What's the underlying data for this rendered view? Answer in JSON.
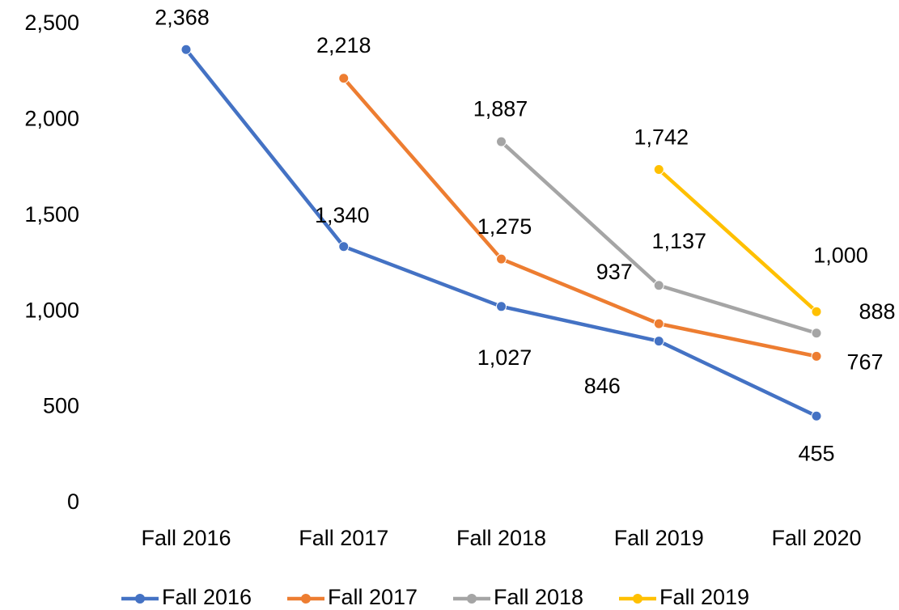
{
  "chart_data": {
    "type": "line",
    "categories": [
      "Fall 2016",
      "Fall 2017",
      "Fall 2018",
      "Fall 2019",
      "Fall 2020"
    ],
    "series": [
      {
        "name": "Fall 2016",
        "color": "#4472c4",
        "values": [
          2368,
          1340,
          1027,
          846,
          455
        ],
        "value_labels": [
          "2,368",
          "1,340",
          "1,027",
          "846",
          "455"
        ]
      },
      {
        "name": "Fall 2017",
        "color": "#ed7d31",
        "values": [
          null,
          2218,
          1275,
          937,
          767
        ],
        "value_labels": [
          null,
          "2,218",
          "1,275",
          "937",
          "767"
        ]
      },
      {
        "name": "Fall 2018",
        "color": "#a5a5a5",
        "values": [
          null,
          null,
          1887,
          1137,
          888
        ],
        "value_labels": [
          null,
          null,
          "1,887",
          "1,137",
          "888"
        ]
      },
      {
        "name": "Fall 2019",
        "color": "#ffc000",
        "values": [
          null,
          null,
          null,
          1742,
          1000
        ],
        "value_labels": [
          null,
          null,
          null,
          "1,742",
          "1,000"
        ]
      }
    ],
    "ylim": [
      0,
      2500
    ],
    "yticks": [
      0,
      500,
      {
        "value": 1000,
        "label": "1,000"
      },
      {
        "value": 1500,
        "label": "1,500"
      },
      {
        "value": 2000,
        "label": "2,000"
      },
      {
        "value": 2500,
        "label": "2,500"
      }
    ],
    "grid": false,
    "legend": "bottom"
  }
}
